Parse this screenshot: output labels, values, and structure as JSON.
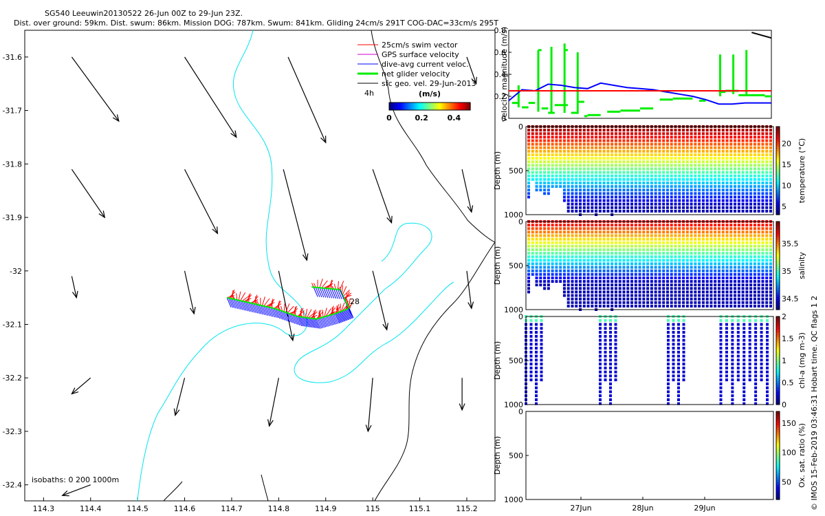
{
  "header": {
    "line1": "SG540 Leeuwin20130522 26-Jun 00Z to 29-Jun 23Z.",
    "line2": "Dist. over ground: 59km. Dist. swum: 86km. Mission DOG: 787km. Swum: 841km. Gliding 24cm/s 291T COG-DAC=33cm/s 295T"
  },
  "credit": "© IMOS 15-Feb-2019 03:46:31 Hobart time. QC flags 1  2",
  "colors": {
    "swim": "#ff0000",
    "gps": "#cc00cc",
    "dac": "#0000ff",
    "net": "#00ee00",
    "geo": "#000000",
    "coast": "#000000",
    "isobath": "#00e5ee",
    "speed_line": "#ff0000"
  },
  "chart_data": [
    {
      "id": "map",
      "type": "scatter",
      "title": "Glider track with velocity vectors",
      "xlabel": "",
      "ylabel": "",
      "xlim": [
        114.26,
        115.26
      ],
      "ylim": [
        -32.43,
        -31.55
      ],
      "xticks": [
        "114.3",
        "114.4",
        "114.5",
        "114.6",
        "114.7",
        "114.8",
        "114.9",
        "115",
        "115.1",
        "115.2"
      ],
      "yticks": [
        "-31.6",
        "-31.7",
        "-31.8",
        "-31.9",
        "-32",
        "-32.1",
        "-32.2",
        "-32.3",
        "-32.4"
      ],
      "legend": [
        {
          "label": "25cm/s swim vector",
          "color": "#ff0000"
        },
        {
          "label": "GPS surface velocity",
          "color": "#cc00cc"
        },
        {
          "label": "dive-avg current veloc.",
          "color": "#0000ff"
        },
        {
          "label": "net glider velocity",
          "color": "#00ee00"
        },
        {
          "label": "sfc geo. vel. 29-Jun-2013",
          "color": "#000000"
        }
      ],
      "legend_position": "top-right",
      "colorbar": {
        "label": "(m/s)",
        "ticks": [
          "0",
          "0.2",
          "0.4"
        ],
        "range": [
          0,
          0.5
        ]
      },
      "annotations": {
        "scale_label": "4h",
        "day_label": "28",
        "isobaths": "isobaths: 0   200  1000m"
      },
      "geo_arrows": [
        {
          "lon": 114.36,
          "lat": -31.6,
          "dx": 0.1,
          "dy": -0.12
        },
        {
          "lon": 114.6,
          "lat": -31.6,
          "dx": 0.11,
          "dy": -0.15
        },
        {
          "lon": 114.82,
          "lat": -31.6,
          "dx": 0.08,
          "dy": -0.16
        },
        {
          "lon": 115.2,
          "lat": -31.6,
          "dx": 0.02,
          "dy": -0.05
        },
        {
          "lon": 114.36,
          "lat": -31.81,
          "dx": 0.07,
          "dy": -0.09
        },
        {
          "lon": 114.6,
          "lat": -31.81,
          "dx": 0.07,
          "dy": -0.12
        },
        {
          "lon": 114.81,
          "lat": -31.81,
          "dx": 0.05,
          "dy": -0.17
        },
        {
          "lon": 115.0,
          "lat": -31.81,
          "dx": 0.04,
          "dy": -0.1
        },
        {
          "lon": 115.19,
          "lat": -31.81,
          "dx": 0.02,
          "dy": -0.08
        },
        {
          "lon": 114.36,
          "lat": -32.01,
          "dx": 0.01,
          "dy": -0.04
        },
        {
          "lon": 114.6,
          "lat": -32.0,
          "dx": 0.02,
          "dy": -0.08
        },
        {
          "lon": 114.8,
          "lat": -32.0,
          "dx": 0.03,
          "dy": -0.13
        },
        {
          "lon": 115.0,
          "lat": -32.0,
          "dx": 0.03,
          "dy": -0.11
        },
        {
          "lon": 115.2,
          "lat": -32.0,
          "dx": 0.01,
          "dy": -0.07
        },
        {
          "lon": 114.4,
          "lat": -32.2,
          "dx": -0.04,
          "dy": -0.03
        },
        {
          "lon": 114.6,
          "lat": -32.2,
          "dx": -0.02,
          "dy": -0.07
        },
        {
          "lon": 114.8,
          "lat": -32.2,
          "dx": -0.02,
          "dy": -0.09
        },
        {
          "lon": 115.0,
          "lat": -32.2,
          "dx": -0.01,
          "dy": -0.1
        },
        {
          "lon": 115.19,
          "lat": -32.2,
          "dx": 0.0,
          "dy": -0.06
        },
        {
          "lon": 114.4,
          "lat": -32.4,
          "dx": -0.06,
          "dy": -0.02
        }
      ],
      "track": [
        {
          "lon": 114.69,
          "lat": -32.05
        },
        {
          "lon": 114.74,
          "lat": -32.06
        },
        {
          "lon": 114.79,
          "lat": -32.07
        },
        {
          "lon": 114.84,
          "lat": -32.085
        },
        {
          "lon": 114.88,
          "lat": -32.09
        },
        {
          "lon": 114.92,
          "lat": -32.08
        },
        {
          "lon": 114.95,
          "lat": -32.07
        },
        {
          "lon": 114.93,
          "lat": -32.035
        },
        {
          "lon": 114.87,
          "lat": -32.03
        }
      ]
    },
    {
      "id": "velocity",
      "type": "line",
      "ylabel": "velocity magnitude (m/s)",
      "xlim": [
        26,
        30
      ],
      "ylim": [
        0,
        0.8
      ],
      "yticks": [
        "0",
        "0.2",
        "0.4",
        "0.6",
        "0.8"
      ],
      "series": [
        {
          "name": "dive-avg current",
          "color": "#0000ff",
          "x": [
            26.0,
            26.2,
            26.4,
            26.6,
            26.8,
            27.0,
            27.2,
            27.4,
            27.6,
            27.8,
            28.0,
            28.2,
            28.4,
            28.6,
            28.8,
            29.0,
            29.2,
            29.4,
            29.6,
            29.8,
            30.0
          ],
          "y": [
            0.16,
            0.26,
            0.25,
            0.31,
            0.3,
            0.28,
            0.27,
            0.32,
            0.3,
            0.28,
            0.27,
            0.26,
            0.24,
            0.22,
            0.2,
            0.17,
            0.13,
            0.13,
            0.14,
            0.14,
            0.14
          ]
        },
        {
          "name": "swim 25cm/s",
          "color": "#ff0000",
          "x": [
            26,
            30
          ],
          "y": [
            0.25,
            0.25
          ]
        },
        {
          "name": "black",
          "color": "#000000",
          "x": [
            29.7,
            30.0
          ],
          "y": [
            0.78,
            0.73
          ]
        }
      ],
      "segments": [
        [
          26.05,
          26.15,
          0.14
        ],
        [
          26.2,
          26.3,
          0.1
        ],
        [
          26.3,
          26.4,
          0.14
        ],
        [
          26.45,
          26.5,
          0.62
        ],
        [
          26.5,
          26.6,
          0.09
        ],
        [
          26.6,
          26.7,
          0.05
        ],
        [
          26.7,
          26.9,
          0.12
        ],
        [
          26.85,
          26.9,
          0.62
        ],
        [
          26.95,
          27.05,
          0.05
        ],
        [
          27.05,
          27.15,
          0.15
        ],
        [
          27.15,
          27.2,
          0.02
        ],
        [
          27.2,
          27.4,
          0.03
        ],
        [
          27.5,
          27.7,
          0.06
        ],
        [
          27.7,
          28.0,
          0.07
        ],
        [
          28.0,
          28.2,
          0.09
        ],
        [
          28.3,
          28.5,
          0.17
        ],
        [
          28.5,
          28.8,
          0.18
        ],
        [
          28.9,
          29.0,
          0.16
        ],
        [
          29.2,
          29.3,
          0.24
        ],
        [
          29.3,
          29.5,
          0.25
        ],
        [
          29.5,
          29.9,
          0.21
        ],
        [
          29.9,
          30.0,
          0.2
        ]
      ],
      "spikes": [
        [
          26.15,
          0.1,
          0.3
        ],
        [
          26.45,
          0.06,
          0.62
        ],
        [
          26.65,
          0.05,
          0.65
        ],
        [
          26.85,
          0.05,
          0.68
        ],
        [
          27.05,
          0.04,
          0.6
        ],
        [
          29.22,
          0.2,
          0.58
        ],
        [
          29.42,
          0.22,
          0.58
        ],
        [
          29.62,
          0.22,
          0.62
        ]
      ]
    },
    {
      "id": "temperature",
      "type": "scatter",
      "ylabel": "Depth (m)",
      "ylim": [
        1000,
        0
      ],
      "yticks": [
        "0",
        "500",
        "1000"
      ],
      "xlim": [
        26,
        30
      ],
      "colorbar": {
        "label": "temperature (°C)",
        "ticks": [
          "5",
          "10",
          "15",
          "20"
        ],
        "range": [
          3,
          24
        ]
      },
      "profiles_max_depth": [
        800,
        620,
        730,
        720,
        760,
        770,
        700,
        680,
        700,
        840,
        980,
        990,
        980,
        1000,
        980,
        990,
        990,
        1000,
        990,
        990,
        990,
        1000,
        980,
        990,
        980,
        980,
        990,
        990,
        990,
        990,
        980,
        990,
        990,
        990,
        990,
        990,
        990,
        980,
        990,
        990,
        990,
        990,
        990,
        990,
        990,
        990,
        990,
        990,
        990,
        990,
        980,
        990,
        990,
        990,
        990,
        990,
        990,
        990,
        990,
        990,
        990,
        990
      ]
    },
    {
      "id": "salinity",
      "type": "scatter",
      "ylabel": "Depth (m)",
      "ylim": [
        1000,
        0
      ],
      "yticks": [
        "0",
        "500",
        "1000"
      ],
      "xlim": [
        26,
        30
      ],
      "colorbar": {
        "label": "salinity",
        "ticks": [
          "34.5",
          "35",
          "35.5"
        ],
        "range": [
          34.3,
          35.9
        ]
      },
      "profiles_max_depth": [
        800,
        620,
        730,
        720,
        760,
        770,
        700,
        680,
        700,
        840,
        980,
        990,
        980,
        1000,
        980,
        990,
        990,
        1000,
        990,
        990,
        990,
        1000,
        980,
        990,
        980,
        980,
        990,
        990,
        990,
        990,
        980,
        990,
        990,
        990,
        990,
        990,
        990,
        980,
        990,
        990,
        990,
        990,
        990,
        990,
        990,
        990,
        990,
        990,
        990,
        990,
        980,
        990,
        990,
        990,
        990,
        990,
        990,
        990,
        990,
        990,
        990,
        990
      ]
    },
    {
      "id": "chla",
      "type": "scatter",
      "ylabel": "Depth (m)",
      "ylim": [
        1000,
        0
      ],
      "yticks": [
        "0",
        "500",
        "1000"
      ],
      "xlim": [
        26,
        30
      ],
      "colorbar": {
        "label": "chl-a (mg m-3)",
        "ticks": [
          "0",
          "0.5",
          "1",
          "1.5",
          "2"
        ],
        "range": [
          0,
          2
        ]
      },
      "profile_groups": [
        [
          26.0,
          26.25
        ],
        [
          27.2,
          27.45
        ],
        [
          28.3,
          28.55
        ],
        [
          29.15,
          29.9
        ]
      ]
    },
    {
      "id": "oxygen",
      "type": "scatter",
      "ylabel": "Depth (m)",
      "ylim": [
        1000,
        0
      ],
      "yticks": [
        "0",
        "500",
        "1000"
      ],
      "xlim": [
        26,
        30
      ],
      "xticks": [
        "27Jun",
        "28Jun",
        "29Jun"
      ],
      "colorbar": {
        "label": "Ox. sat. ratio (%)",
        "ticks": [
          "50",
          "100",
          "150"
        ],
        "range": [
          20,
          170
        ]
      }
    }
  ]
}
